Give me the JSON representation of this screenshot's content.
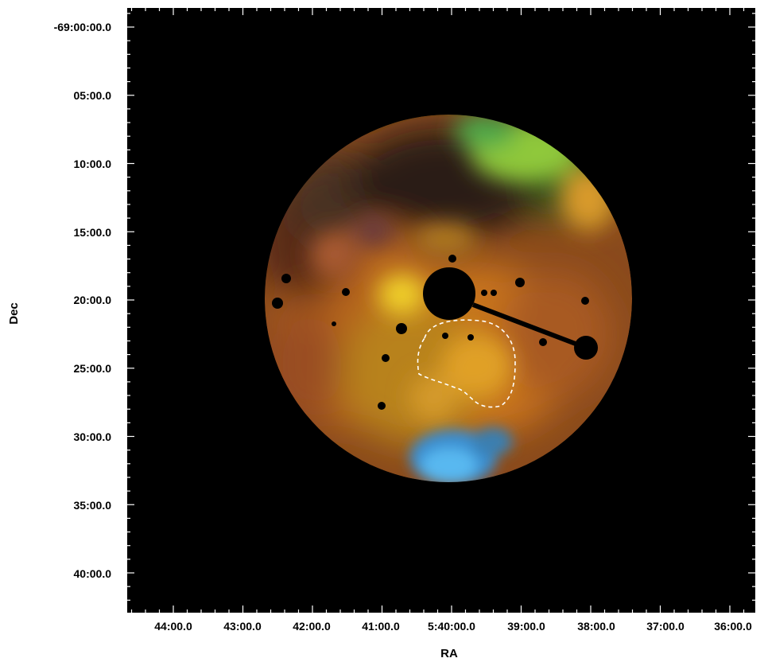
{
  "axes": {
    "xlabel": "RA",
    "ylabel": "Dec",
    "x_ticks": [
      "44:00.0",
      "43:00.0",
      "42:00.0",
      "41:00.0",
      "5:40:00.0",
      "39:00.0",
      "38:00.0",
      "37:00.0",
      "36:00.0"
    ],
    "y_ticks": [
      "-69:00:00.0",
      "05:00.0",
      "10:00.0",
      "15:00.0",
      "20:00.0",
      "25:00.0",
      "30:00.0",
      "35:00.0",
      "40:00.0"
    ]
  },
  "colors": {
    "background": "#000000",
    "frame_ticks": "#ffffff",
    "region_outline": "#ffffff"
  }
}
